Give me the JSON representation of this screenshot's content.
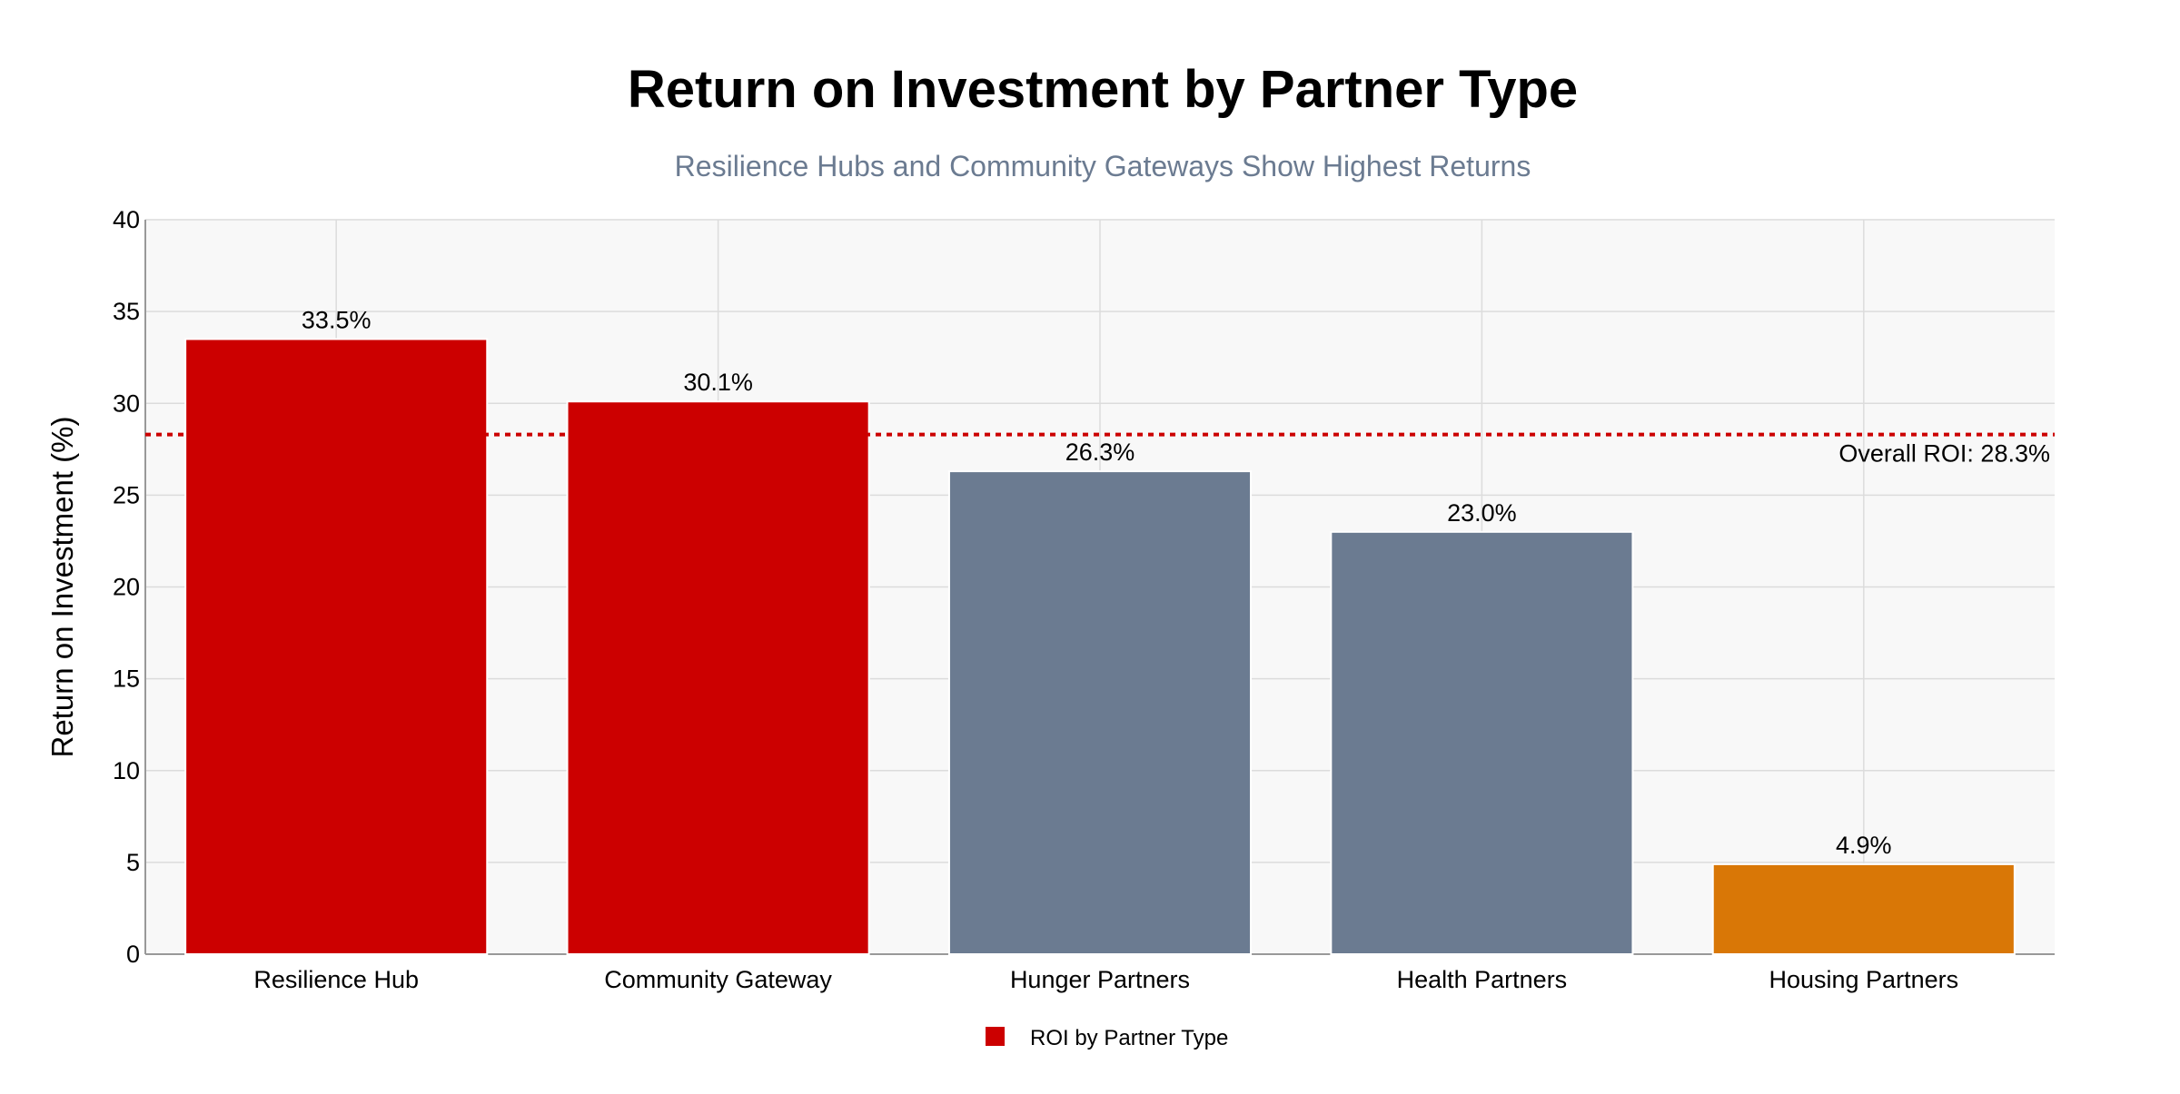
{
  "colors": {
    "plot_background": "#f8f8f8",
    "grid": "#dcdcdc",
    "axis": "#999999",
    "reference_line": "#cc0000",
    "subtitle": "#6b7b91"
  },
  "chart_data": {
    "type": "bar",
    "title": "Return on Investment by Partner Type",
    "subtitle": "Resilience Hubs and Community Gateways Show Highest Returns",
    "xlabel": "",
    "ylabel": "Return on Investment (%)",
    "ylim": [
      0,
      40
    ],
    "yticks": [
      0,
      5,
      10,
      15,
      20,
      25,
      30,
      35,
      40
    ],
    "grid": true,
    "categories": [
      "Resilience Hub",
      "Community Gateway",
      "Hunger Partners",
      "Health Partners",
      "Housing Partners"
    ],
    "series": [
      {
        "name": "ROI by Partner Type",
        "values": [
          33.5,
          30.1,
          26.3,
          23.0,
          4.9
        ],
        "data_labels": [
          "33.5%",
          "30.1%",
          "26.3%",
          "23.0%",
          "4.9%"
        ],
        "colors": [
          "#cc0000",
          "#cc0000",
          "#6b7b91",
          "#6b7b91",
          "#d97706"
        ]
      }
    ],
    "reference_line": {
      "value": 28.3,
      "label": "Overall ROI: 28.3%",
      "style": "dotted"
    },
    "legend": {
      "position": "bottom-center",
      "entries": [
        {
          "label": "ROI by Partner Type",
          "color": "#cc0000"
        }
      ]
    }
  }
}
